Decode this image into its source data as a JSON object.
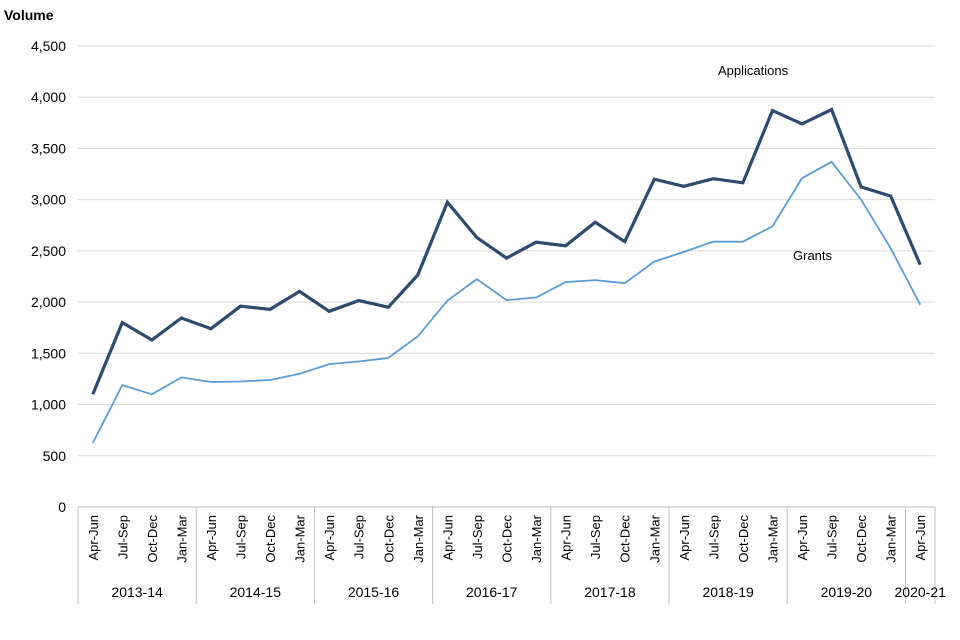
{
  "chart_data": {
    "type": "line",
    "ylabel": "Volume",
    "ylim": [
      0,
      4500
    ],
    "yticks": [
      "0",
      "500",
      "1,000",
      "1,500",
      "2,000",
      "2,500",
      "3,000",
      "3,500",
      "4,000",
      "4,500"
    ],
    "ytick_values": [
      0,
      500,
      1000,
      1500,
      2000,
      2500,
      3000,
      3500,
      4000,
      4500
    ],
    "grid": "horizontal",
    "categories": [
      "Apr-Jun",
      "Jul-Sep",
      "Oct-Dec",
      "Jan-Mar",
      "Apr-Jun",
      "Jul-Sep",
      "Oct-Dec",
      "Jan-Mar",
      "Apr-Jun",
      "Jul-Sep",
      "Oct-Dec",
      "Jan-Mar",
      "Apr-Jun",
      "Jul-Sep",
      "Oct-Dec",
      "Jan-Mar",
      "Apr-Jun",
      "Jul-Sep",
      "Oct-Dec",
      "Jan-Mar",
      "Apr-Jun",
      "Jul-Sep",
      "Oct-Dec",
      "Jan-Mar",
      "Apr-Jun",
      "Jul-Sep",
      "Oct-Dec",
      "Jan-Mar",
      "Apr-Jun"
    ],
    "groups": [
      {
        "label": "2013-14",
        "count": 4
      },
      {
        "label": "2014-15",
        "count": 4
      },
      {
        "label": "2015-16",
        "count": 4
      },
      {
        "label": "2016-17",
        "count": 4
      },
      {
        "label": "2017-18",
        "count": 4
      },
      {
        "label": "2018-19",
        "count": 4
      },
      {
        "label": "2019-20",
        "count": 4
      },
      {
        "label": "2020-21",
        "count": 1
      }
    ],
    "series": [
      {
        "name": "Applications",
        "color": "#2e4a6e",
        "values": [
          1100,
          1800,
          1630,
          1845,
          1740,
          1960,
          1930,
          2105,
          1910,
          2015,
          1950,
          2265,
          2975,
          2630,
          2430,
          2585,
          2550,
          2780,
          2590,
          3200,
          3130,
          3205,
          3165,
          3870,
          3740,
          3880,
          3125,
          3035,
          2365
        ]
      },
      {
        "name": "Grants",
        "color": "#5b9bd5",
        "values": [
          625,
          1190,
          1100,
          1265,
          1220,
          1225,
          1240,
          1300,
          1395,
          1420,
          1455,
          1665,
          2015,
          2225,
          2020,
          2045,
          2195,
          2215,
          2185,
          2395,
          2490,
          2590,
          2590,
          2740,
          3210,
          3370,
          3000,
          2525,
          1975
        ]
      }
    ]
  }
}
